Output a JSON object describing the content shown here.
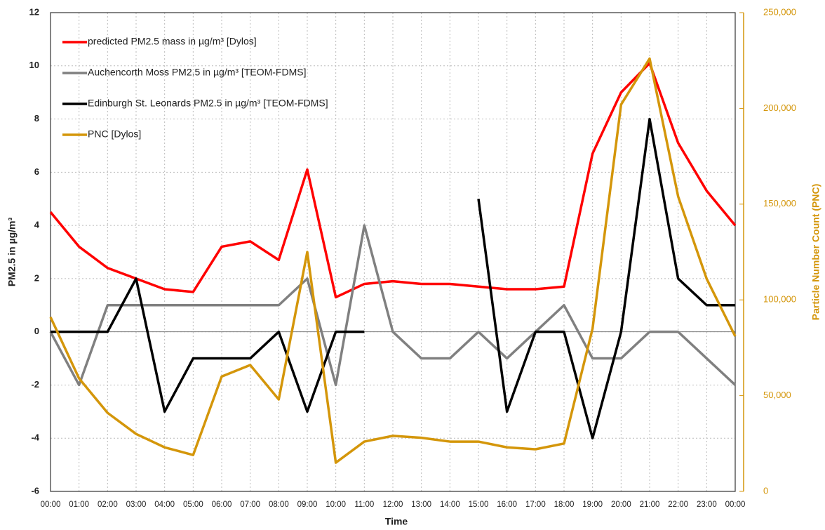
{
  "chart_data": {
    "type": "line",
    "x_label": "Time",
    "y_label": "PM2.5 in µg/m³",
    "y2_label": "Particle Number Count (PNC)",
    "categories": [
      "00:00",
      "01:00",
      "02:00",
      "03:00",
      "04:00",
      "05:00",
      "06:00",
      "07:00",
      "08:00",
      "09:00",
      "10:00",
      "11:00",
      "12:00",
      "13:00",
      "14:00",
      "15:00",
      "16:00",
      "17:00",
      "18:00",
      "19:00",
      "20:00",
      "21:00",
      "22:00",
      "23:00",
      "00:00"
    ],
    "series": [
      {
        "name": "predicted PM2.5 mass in µg/m³ [Dylos]",
        "color": "#ff0000",
        "values": [
          4.5,
          3.2,
          2.4,
          2.0,
          1.6,
          1.5,
          3.2,
          3.4,
          2.7,
          6.1,
          1.3,
          1.8,
          1.9,
          1.8,
          1.8,
          1.7,
          1.6,
          1.6,
          1.7,
          6.7,
          9.0,
          10.1,
          7.1,
          5.3,
          4.0
        ]
      },
      {
        "name": "Auchencorth Moss PM2.5 in µg/m³ [TEOM-FDMS]",
        "color": "#808080",
        "values": [
          0,
          -2,
          1,
          1,
          1,
          1,
          1,
          1,
          1,
          2,
          -2,
          4,
          0,
          -1,
          -1,
          0,
          -1,
          0,
          1,
          -1,
          -1,
          0,
          0,
          -1,
          -2
        ]
      },
      {
        "name": "Edinburgh St. Leonards PM2.5 in µg/m³ [TEOM-FDMS]",
        "color": "#000000",
        "values": [
          0,
          0,
          0,
          2,
          -3,
          -1,
          -1,
          -1,
          0,
          -3,
          0,
          0,
          null,
          null,
          null,
          5,
          -3,
          0,
          0,
          -4,
          0,
          8,
          2,
          1,
          1
        ]
      },
      {
        "name": "PNC [Dylos]",
        "color": "#d4960a",
        "axis": "y2",
        "values": [
          91000,
          59000,
          41000,
          30000,
          23000,
          19000,
          60000,
          66000,
          48000,
          125000,
          15000,
          26000,
          29000,
          28000,
          26000,
          26000,
          23000,
          22000,
          25000,
          85000,
          202000,
          226000,
          154000,
          111000,
          81000
        ]
      }
    ],
    "ylim": [
      -6,
      12
    ],
    "yticks": [
      -6,
      -4,
      -2,
      0,
      2,
      4,
      6,
      8,
      10,
      12
    ],
    "y2lim": [
      0,
      250000
    ],
    "y2ticks": [
      0,
      {
        "value": 50000,
        "label": "50,000"
      },
      {
        "value": 100000,
        "label": "100,000"
      },
      {
        "value": 150000,
        "label": "150,000"
      },
      {
        "value": 200000,
        "label": "200,000"
      },
      {
        "value": 250000,
        "label": "250,000"
      }
    ],
    "grid": true,
    "legend": "top-left"
  }
}
